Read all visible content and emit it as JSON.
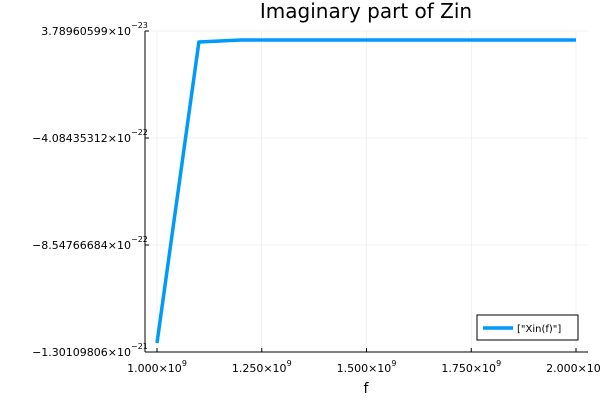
{
  "chart_data": {
    "type": "line",
    "title": "Imaginary part of Zin",
    "xlabel": "f",
    "ylabel": "",
    "xlim": [
      1000000000.0,
      2000000000.0
    ],
    "ylim": [
      -1.30109806e-21,
      3.78960599e-23
    ],
    "grid": true,
    "legend_position": "bottom-right",
    "x_ticks": [
      {
        "value": 1000000000.0,
        "mantissa": "1.000",
        "exp": "9"
      },
      {
        "value": 1250000000.0,
        "mantissa": "1.250",
        "exp": "9"
      },
      {
        "value": 1500000000.0,
        "mantissa": "1.500",
        "exp": "9"
      },
      {
        "value": 1750000000.0,
        "mantissa": "1.750",
        "exp": "9"
      },
      {
        "value": 2000000000.0,
        "mantissa": "2.000",
        "exp": "9"
      }
    ],
    "y_ticks": [
      {
        "value": 3.78960599e-23,
        "mantissa": "3.78960599",
        "exp": "−23"
      },
      {
        "value": -4.08435312e-22,
        "mantissa": "−4.08435312",
        "exp": "−22"
      },
      {
        "value": -8.54766684e-22,
        "mantissa": "−8.54766684",
        "exp": "−22"
      },
      {
        "value": -1.30109806e-21,
        "mantissa": "−1.30109806",
        "exp": "−21"
      }
    ],
    "series": [
      {
        "name": "[\"Xin(f)\"]",
        "color": "#009af9",
        "x": [
          1000000000.0,
          1100000000.0,
          1200000000.0,
          1300000000.0,
          1400000000.0,
          1500000000.0,
          1600000000.0,
          1700000000.0,
          1800000000.0,
          1900000000.0,
          2000000000.0
        ],
        "y": [
          -1.26e-21,
          0.0,
          3.78960599e-23,
          3.78960599e-23,
          3.78960599e-23,
          3.78960599e-23,
          3.78960599e-23,
          3.78960599e-23,
          3.78960599e-23,
          3.78960599e-23,
          3.78960599e-23
        ]
      }
    ]
  }
}
